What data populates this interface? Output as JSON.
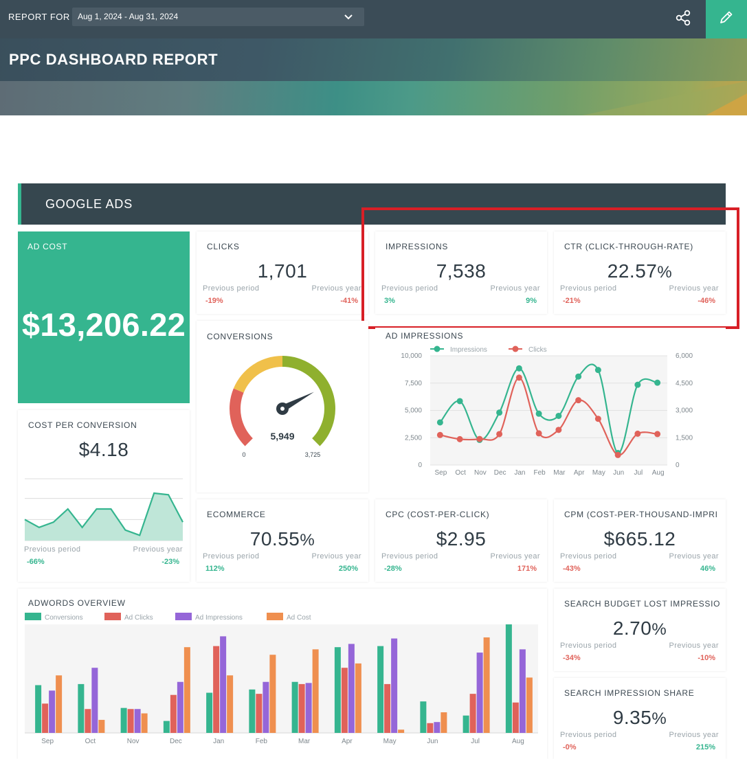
{
  "header": {
    "report_for_label": "REPORT FOR",
    "date_range": "Aug 1, 2024 - Aug 31, 2024",
    "title": "PPC DASHBOARD REPORT"
  },
  "section": {
    "title": "GOOGLE ADS"
  },
  "labels": {
    "previous_period": "Previous period",
    "previous_year": "Previous year"
  },
  "ad_cost": {
    "title": "AD COST",
    "value": "$13,206.22"
  },
  "kpis": {
    "clicks": {
      "title": "CLICKS",
      "value": "1,701",
      "prev": "-19%",
      "year": "-41%"
    },
    "impressions": {
      "title": "IMPRESSIONS",
      "value": "7,538",
      "prev": "3%",
      "year": "9%"
    },
    "ctr": {
      "title": "CTR (CLICK-THROUGH-RATE)",
      "value": "22.57",
      "unit": "%",
      "prev": "-21%",
      "year": "-46%"
    },
    "ecommerce": {
      "title": "ECOMMERCE",
      "value": "70.55",
      "unit": "%",
      "prev": "112%",
      "year": "250%"
    },
    "cpc": {
      "title": "CPC (COST-PER-CLICK)",
      "value": "$2.95",
      "prev": "-28%",
      "year": "171%"
    },
    "cpm": {
      "title": "CPM (COST-PER-THOUSAND-IMPRI",
      "value": "$665.12",
      "prev": "-43%",
      "year": "46%"
    },
    "budget_lost": {
      "title": "SEARCH BUDGET LOST IMPRESSIO",
      "value": "2.70",
      "unit": "%",
      "prev": "-34%",
      "year": "-10%"
    },
    "impr_share": {
      "title": "SEARCH IMPRESSION SHARE",
      "value": "9.35",
      "unit": "%",
      "prev": "-0%",
      "year": "215%"
    }
  },
  "cost_per_conversion": {
    "title": "COST PER CONVERSION",
    "value": "$4.18",
    "prev": "-66%",
    "year": "-23%"
  },
  "conversions": {
    "title": "CONVERSIONS",
    "value": "5,949",
    "min": "0",
    "max": "3,725"
  },
  "ad_impressions_chart_title": "AD IMPRESSIONS",
  "adwords_overview_title": "ADWORDS OVERVIEW",
  "colors": {
    "green": "#35b58f",
    "red": "#e0625a",
    "purple": "#9566d8",
    "orange": "#ef8f4f",
    "dark": "#36474f",
    "highlight": "#d81f26"
  },
  "icons": {
    "share": "share-icon",
    "edit": "pencil-icon",
    "dropdown": "chevron-down-icon"
  },
  "chart_data": [
    {
      "type": "line",
      "title": "AD IMPRESSIONS",
      "categories": [
        "Sep",
        "Oct",
        "Nov",
        "Dec",
        "Jan",
        "Feb",
        "Mar",
        "Apr",
        "May",
        "Jun",
        "Jul",
        "Aug"
      ],
      "series": [
        {
          "name": "Impressions",
          "axis": "left",
          "values": [
            3900,
            5850,
            2300,
            4800,
            8850,
            4700,
            4500,
            8100,
            8700,
            1100,
            7350,
            7538
          ]
        },
        {
          "name": "Clicks",
          "axis": "right",
          "values": [
            1650,
            1420,
            1430,
            1700,
            4800,
            1740,
            1930,
            3560,
            2540,
            550,
            1720,
            1701
          ]
        }
      ],
      "ylim_left": [
        0,
        10000
      ],
      "yticks_left": [
        "0",
        "2,500",
        "5,000",
        "7,500",
        "10,000"
      ],
      "ylim_right": [
        0,
        6000
      ],
      "yticks_right": [
        "0",
        "1,500",
        "3,000",
        "4,500",
        "6,000"
      ],
      "grid": true,
      "legend": "top-left"
    },
    {
      "type": "bar",
      "title": "ADWORDS OVERVIEW",
      "categories": [
        "Sep",
        "Oct",
        "Nov",
        "Dec",
        "Jan",
        "Feb",
        "Mar",
        "Apr",
        "May",
        "Jun",
        "Jul",
        "Aug"
      ],
      "series": [
        {
          "name": "Conversions",
          "values": [
            44,
            45,
            23,
            11,
            37,
            40,
            47,
            79,
            80,
            29,
            16,
            100
          ]
        },
        {
          "name": "Ad Clicks",
          "values": [
            27,
            22,
            22,
            35,
            80,
            36,
            45,
            60,
            45,
            9,
            36,
            28
          ]
        },
        {
          "name": "Ad Impressions",
          "values": [
            39,
            60,
            22,
            47,
            89,
            47,
            46,
            82,
            87,
            10,
            74,
            77
          ]
        },
        {
          "name": "Ad Cost",
          "values": [
            53,
            12,
            18,
            79,
            53,
            72,
            77,
            64,
            3,
            19,
            88,
            51
          ]
        }
      ],
      "ylim": [
        0,
        100
      ],
      "legend": "top-left"
    },
    {
      "type": "area",
      "title": "COST PER CONVERSION",
      "values": [
        40,
        25,
        35,
        60,
        25,
        60,
        60,
        20,
        10,
        90,
        87,
        35
      ],
      "ylim": [
        0,
        120
      ],
      "grid": true
    },
    {
      "type": "gauge",
      "title": "CONVERSIONS",
      "value": 5949,
      "min": 0,
      "max": 3725,
      "segments": [
        {
          "color": "#e0625a",
          "to": 0.25
        },
        {
          "color": "#f0c04a",
          "to": 0.5
        },
        {
          "color": "#8fb02e",
          "to": 1.0
        }
      ],
      "needle_fraction": 0.73
    }
  ]
}
